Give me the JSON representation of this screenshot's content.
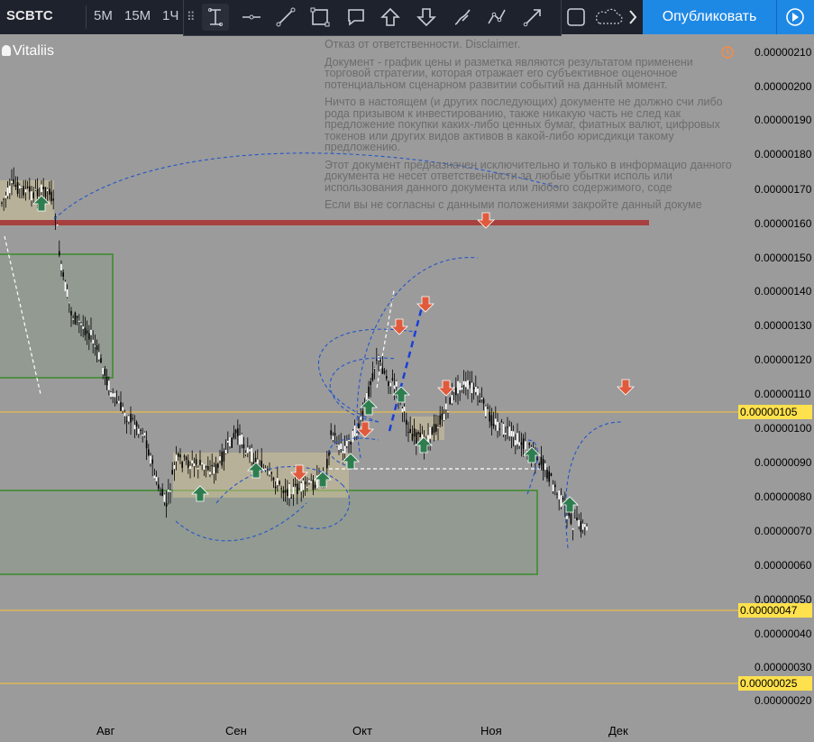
{
  "toolbar": {
    "symbol": "SCBTC",
    "timeframes": [
      "5M",
      "15M",
      "1Ч"
    ],
    "publish_label": "Опубликовать"
  },
  "chart": {
    "author": "Vitaliis",
    "disclaimer": [
      "Отказ от ответственности. Disclaimer.",
      "Документ - график цены и разметка являются результатом применени торговой стратегии, которая отражает его субъективное оценочное потенциальном сценарном развитии событий на данный момент.",
      "Ничто в настоящем (и других последующих) документе не должно счи либо рода призывом к инвестированию, также никакую часть не след как предложение покупки каких-либо ценных бумаг, фиатных валют, цифровых токенов или других видов активов в какой-либо юрисдикци такому предложению.",
      "Этот документ предназначен исключительно и только в информацио данного документа не несет ответственности за любые убытки исполь или использования данного документа или любого содержимого, соде",
      "Если вы не согласны с данными положениями закройте данный докуме"
    ],
    "price_ticks": [
      "0.00000210",
      "0.00000200",
      "0.00000190",
      "0.00000180",
      "0.00000170",
      "0.00000160",
      "0.00000150",
      "0.00000140",
      "0.00000130",
      "0.00000120",
      "0.00000110",
      "0.00000100",
      "0.00000090",
      "0.00000080",
      "0.00000070",
      "0.00000060",
      "0.00000050",
      "0.00000040",
      "0.00000030",
      "0.00000020"
    ],
    "price_tags": [
      "0.00000105",
      "0.00000047",
      "0.00000025"
    ],
    "date_ticks": [
      "Авг",
      "Сен",
      "Окт",
      "Ноя",
      "Дек"
    ]
  },
  "colors": {
    "background": "#9b9b9b",
    "resistance_line": "#a84040",
    "level_line": "#ffc433",
    "green_zone": "#3a8a2a",
    "accent": "#1e88e5",
    "buy_arrow": "#2e7d4f",
    "sell_arrow": "#e05a3c"
  }
}
